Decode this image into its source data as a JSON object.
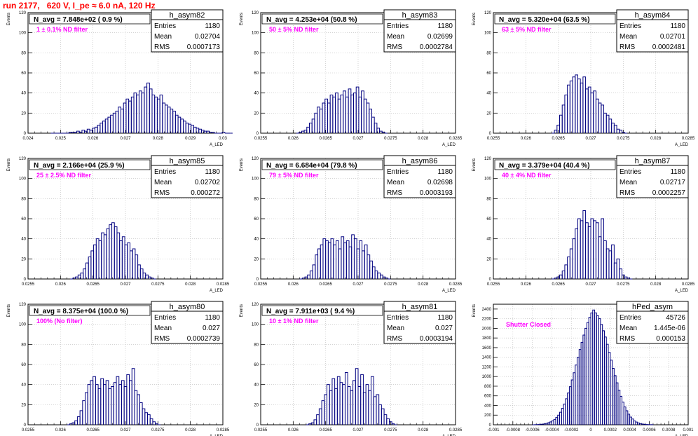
{
  "run_title": "run 2177,   620 V, I_pe ≈ 6.0 nA, 120 Hz",
  "colors": {
    "title": "#ff0000",
    "histogram": "#000080",
    "filter_label": "#ff00ff",
    "grid": "#bbbbbb",
    "text": "#000000"
  },
  "chart_data": [
    {
      "type": "histogram",
      "name": "h_asym82",
      "headline": "N_avg = 7.848e+02 ( 0.9 %)",
      "filter_label": "1 ± 0.1% ND filter",
      "stats": [
        [
          "Entries",
          "1180"
        ],
        [
          "Mean",
          "0.02704"
        ],
        [
          "RMS",
          "0.0007173"
        ]
      ],
      "ylabel": "Events",
      "xlabel": "A_LED",
      "xlim": [
        0.024,
        0.03
      ],
      "ylim": [
        0,
        120
      ],
      "xticks": [
        "0.024",
        "0.025",
        "0.026",
        "0.027",
        "0.028",
        "0.029",
        "0.03"
      ],
      "xticks_at": [
        0.024,
        0.025,
        0.026,
        0.027,
        0.028,
        0.029,
        0.03
      ],
      "yticks": [
        0,
        20,
        40,
        60,
        80,
        100,
        120
      ],
      "grid": true,
      "bin_start": 0.0247,
      "bin_width": 8e-05,
      "values": [
        0,
        0,
        0,
        0,
        0,
        0,
        0,
        1,
        1,
        1,
        2,
        1,
        3,
        2,
        4,
        3,
        5,
        6,
        8,
        10,
        12,
        14,
        16,
        18,
        20,
        22,
        26,
        24,
        30,
        34,
        32,
        36,
        40,
        38,
        42,
        40,
        46,
        50,
        44,
        38,
        36,
        34,
        38,
        30,
        28,
        26,
        24,
        22,
        18,
        16,
        14,
        12,
        10,
        9,
        8,
        6,
        5,
        4,
        3,
        2,
        2,
        1,
        1,
        0,
        0,
        0,
        1,
        0,
        0,
        0
      ]
    },
    {
      "type": "histogram",
      "name": "h_asym83",
      "headline": "N_avg = 4.253e+04 (50.8 %)",
      "filter_label": "50 ± 5% ND filter",
      "stats": [
        [
          "Entries",
          "1180"
        ],
        [
          "Mean",
          "0.02699"
        ],
        [
          "RMS",
          "0.0002784"
        ]
      ],
      "ylabel": "Events",
      "xlabel": "A_LED",
      "xlim": [
        0.0255,
        0.0285
      ],
      "ylim": [
        0,
        120
      ],
      "xticks": [
        "0.0255",
        "0.026",
        "0.0265",
        "0.027",
        "0.0275",
        "0.028",
        "0.0285"
      ],
      "xticks_at": [
        0.0255,
        0.026,
        0.0265,
        0.027,
        0.0275,
        0.028,
        0.0285
      ],
      "yticks": [
        0,
        20,
        40,
        60,
        80,
        100,
        120
      ],
      "grid": true,
      "bin_start": 0.02605,
      "bin_width": 4e-05,
      "values": [
        0,
        1,
        2,
        3,
        6,
        10,
        14,
        20,
        26,
        24,
        30,
        34,
        30,
        38,
        36,
        40,
        34,
        38,
        42,
        36,
        44,
        38,
        40,
        46,
        36,
        42,
        34,
        30,
        24,
        16,
        10,
        5,
        2,
        1,
        0
      ]
    },
    {
      "type": "histogram",
      "name": "h_asym84",
      "headline": "N_avg = 5.320e+04 (63.5 %)",
      "filter_label": "63 ± 5% ND filter",
      "stats": [
        [
          "Entries",
          "1180"
        ],
        [
          "Mean",
          "0.02701"
        ],
        [
          "RMS",
          "0.0002481"
        ]
      ],
      "ylabel": "Events",
      "xlabel": "A_LED",
      "xlim": [
        0.0255,
        0.0285
      ],
      "ylim": [
        0,
        120
      ],
      "xticks": [
        "0.0255",
        "0.026",
        "0.0265",
        "0.027",
        "0.0275",
        "0.028",
        "0.0285"
      ],
      "xticks_at": [
        0.0255,
        0.026,
        0.0265,
        0.027,
        0.0275,
        0.028,
        0.0285
      ],
      "yticks": [
        0,
        20,
        40,
        60,
        80,
        100,
        120
      ],
      "grid": true,
      "bin_start": 0.0264,
      "bin_width": 4e-05,
      "values": [
        0,
        3,
        8,
        18,
        28,
        38,
        48,
        52,
        56,
        58,
        54,
        50,
        56,
        44,
        46,
        40,
        42,
        34,
        30,
        28,
        20,
        18,
        14,
        10,
        8,
        4,
        3,
        1,
        0
      ]
    },
    {
      "type": "histogram",
      "name": "h_asym85",
      "headline": "N_avg = 2.166e+04 (25.9 %)",
      "filter_label": "25 ± 2.5% ND filter",
      "stats": [
        [
          "Entries",
          "1180"
        ],
        [
          "Mean",
          "0.02702"
        ],
        [
          "RMS",
          "0.000272"
        ]
      ],
      "ylabel": "Events",
      "xlabel": "A_LED",
      "xlim": [
        0.0255,
        0.0285
      ],
      "ylim": [
        0,
        120
      ],
      "xticks": [
        "0.0255",
        "0.026",
        "0.0265",
        "0.027",
        "0.0275",
        "0.028",
        "0.0285"
      ],
      "xticks_at": [
        0.0255,
        0.026,
        0.0265,
        0.027,
        0.0275,
        0.028,
        0.0285
      ],
      "yticks": [
        0,
        20,
        40,
        60,
        80,
        100,
        120
      ],
      "grid": true,
      "bin_start": 0.02615,
      "bin_width": 4e-05,
      "values": [
        0,
        1,
        2,
        4,
        6,
        10,
        16,
        22,
        28,
        34,
        40,
        38,
        46,
        44,
        50,
        54,
        56,
        52,
        46,
        38,
        42,
        34,
        36,
        28,
        30,
        24,
        14,
        10,
        6,
        4,
        2,
        1,
        0
      ]
    },
    {
      "type": "histogram",
      "name": "h_asym86",
      "headline": "N_avg = 6.684e+04 (79.8 %)",
      "filter_label": "79 ± 5% ND filter",
      "stats": [
        [
          "Entries",
          "1180"
        ],
        [
          "Mean",
          "0.02698"
        ],
        [
          "RMS",
          "0.0003193"
        ]
      ],
      "ylabel": "Events",
      "xlabel": "A_LED",
      "xlim": [
        0.0255,
        0.0285
      ],
      "ylim": [
        0,
        120
      ],
      "xticks": [
        "0.0255",
        "0.026",
        "0.0265",
        "0.027",
        "0.0275",
        "0.028",
        "0.0285"
      ],
      "xticks_at": [
        0.0255,
        0.026,
        0.0265,
        0.027,
        0.0275,
        0.028,
        0.0285
      ],
      "yticks": [
        0,
        20,
        40,
        60,
        80,
        100,
        120
      ],
      "grid": true,
      "bin_start": 0.0261,
      "bin_width": 4e-05,
      "values": [
        0,
        1,
        2,
        4,
        8,
        14,
        24,
        30,
        34,
        40,
        38,
        36,
        40,
        34,
        38,
        30,
        42,
        36,
        38,
        32,
        44,
        40,
        30,
        38,
        28,
        34,
        24,
        18,
        12,
        8,
        6,
        4,
        2,
        1,
        0
      ]
    },
    {
      "type": "histogram",
      "name": "h_asym87",
      "headline": "N_avg = 3.379e+04 (40.4 %)",
      "filter_label": "40 ± 4% ND filter",
      "stats": [
        [
          "Entries",
          "1180"
        ],
        [
          "Mean",
          "0.02717"
        ],
        [
          "RMS",
          "0.0002257"
        ]
      ],
      "ylabel": "Events",
      "xlabel": "A_LED",
      "xlim": [
        0.0255,
        0.0285
      ],
      "ylim": [
        0,
        120
      ],
      "xticks": [
        "0.0255",
        "0.026",
        "0.0265",
        "0.027",
        "0.0275",
        "0.028",
        "0.0285"
      ],
      "xticks_at": [
        0.0255,
        0.026,
        0.0265,
        0.027,
        0.0275,
        0.028,
        0.0285
      ],
      "yticks": [
        0,
        20,
        40,
        60,
        80,
        100,
        120
      ],
      "grid": true,
      "bin_start": 0.0264,
      "bin_width": 4e-05,
      "values": [
        0,
        1,
        2,
        4,
        8,
        14,
        22,
        30,
        40,
        50,
        60,
        58,
        68,
        56,
        52,
        60,
        58,
        56,
        42,
        60,
        38,
        30,
        28,
        34,
        16,
        20,
        10,
        4,
        2,
        1,
        0
      ]
    },
    {
      "type": "histogram",
      "name": "h_asym80",
      "headline": "N_avg = 8.375e+04 (100.0 %)",
      "filter_label": "100% (No filter)",
      "stats": [
        [
          "Entries",
          "1180"
        ],
        [
          "Mean",
          "0.027"
        ],
        [
          "RMS",
          "0.0002739"
        ]
      ],
      "ylabel": "Events",
      "xlabel": "A_LED",
      "xlim": [
        0.0255,
        0.0285
      ],
      "ylim": [
        0,
        120
      ],
      "xticks": [
        "0.0255",
        "0.026",
        "0.0265",
        "0.027",
        "0.0275",
        "0.028",
        "0.0285"
      ],
      "xticks_at": [
        0.0255,
        0.026,
        0.0265,
        0.027,
        0.0275,
        0.028,
        0.0285
      ],
      "yticks": [
        0,
        20,
        40,
        60,
        80,
        100,
        120
      ],
      "grid": true,
      "bin_start": 0.0261,
      "bin_width": 4e-05,
      "values": [
        0,
        1,
        2,
        4,
        8,
        14,
        24,
        32,
        40,
        44,
        48,
        40,
        36,
        46,
        40,
        44,
        36,
        38,
        42,
        48,
        40,
        44,
        38,
        50,
        44,
        56,
        34,
        30,
        22,
        16,
        12,
        10,
        6,
        3,
        1,
        0
      ]
    },
    {
      "type": "histogram",
      "name": "h_asym81",
      "headline": "N_avg = 7.911e+03 ( 9.4 %)",
      "filter_label": "10 ± 1% ND filter",
      "stats": [
        [
          "Entries",
          "1180"
        ],
        [
          "Mean",
          "0.027"
        ],
        [
          "RMS",
          "0.0003194"
        ]
      ],
      "ylabel": "Events",
      "xlabel": "A_LED",
      "xlim": [
        0.0255,
        0.0285
      ],
      "ylim": [
        0,
        120
      ],
      "xticks": [
        "0.0255",
        "0.026",
        "0.0265",
        "0.027",
        "0.0275",
        "0.028",
        "0.0285"
      ],
      "xticks_at": [
        0.0255,
        0.026,
        0.0265,
        0.027,
        0.0275,
        0.028,
        0.0285
      ],
      "yticks": [
        0,
        20,
        40,
        60,
        80,
        100,
        120
      ],
      "grid": true,
      "bin_start": 0.0262,
      "bin_width": 4e-05,
      "values": [
        0,
        1,
        2,
        5,
        10,
        16,
        24,
        30,
        40,
        34,
        46,
        36,
        48,
        42,
        40,
        52,
        38,
        34,
        44,
        56,
        38,
        50,
        32,
        40,
        34,
        48,
        28,
        30,
        20,
        16,
        10,
        6,
        3,
        1,
        0
      ]
    },
    {
      "type": "histogram",
      "name": "hPed_asym",
      "headline": "",
      "filter_label": "Shutter Closed",
      "stats": [
        [
          "Entries",
          "45726"
        ],
        [
          "Mean",
          "1.445e-06"
        ],
        [
          "RMS",
          "0.000153"
        ]
      ],
      "ylabel": "Events",
      "xlabel": "A_LED",
      "xlim": [
        -0.001,
        0.001
      ],
      "ylim": [
        0,
        2500
      ],
      "xticks": [
        "-0.001",
        "-0.0008",
        "-0.0006",
        "-0.0004",
        "-0.0002",
        "0",
        "0.0002",
        "0.0004",
        "0.0006",
        "0.0008",
        "0.001"
      ],
      "xticks_at": [
        -0.001,
        -0.0008,
        -0.0006,
        -0.0004,
        -0.0002,
        0,
        0.0002,
        0.0004,
        0.0006,
        0.0008,
        0.001
      ],
      "yticks": [
        0,
        200,
        400,
        600,
        800,
        1000,
        1200,
        1400,
        1600,
        1800,
        2000,
        2200,
        2400
      ],
      "grid": true,
      "bin_start": -0.0006,
      "bin_width": 2e-05,
      "values": [
        0,
        2,
        4,
        6,
        10,
        14,
        20,
        30,
        44,
        60,
        84,
        110,
        150,
        200,
        260,
        340,
        430,
        540,
        660,
        790,
        930,
        1080,
        1240,
        1400,
        1560,
        1710,
        1860,
        2000,
        2120,
        2230,
        2320,
        2380,
        2320,
        2260,
        2200,
        2080,
        1950,
        1820,
        1670,
        1500,
        1340,
        1170,
        1020,
        870,
        720,
        590,
        470,
        370,
        290,
        220,
        160,
        120,
        80,
        56,
        38,
        24,
        16,
        10,
        6,
        4,
        2,
        1
      ]
    }
  ]
}
